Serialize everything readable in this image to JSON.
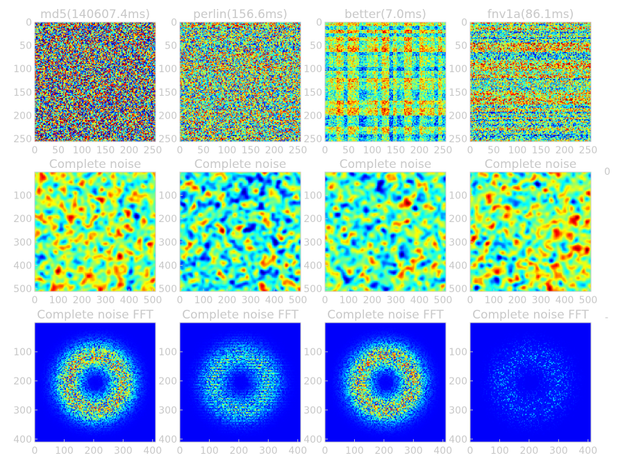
{
  "figure": {
    "text_color": "#c8c8c8",
    "colormap": "jet",
    "stray_marks": [
      "0",
      "-"
    ]
  },
  "chart_data": [
    {
      "type": "heatmap",
      "row": 1,
      "col": 1,
      "title": "md5(140607.4ms)",
      "texture": "white-noise",
      "xticks": [
        "0",
        "50",
        "100",
        "150",
        "200",
        "250"
      ],
      "yticks": [
        "0",
        "50",
        "100",
        "150",
        "200",
        "250"
      ],
      "axis_max": 256
    },
    {
      "type": "heatmap",
      "row": 1,
      "col": 2,
      "title": "perlin(156.6ms)",
      "texture": "white-noise-banded",
      "xticks": [
        "0",
        "50",
        "100",
        "150",
        "200",
        "250"
      ],
      "yticks": [
        "0",
        "50",
        "100",
        "150",
        "200",
        "250"
      ],
      "axis_max": 256
    },
    {
      "type": "heatmap",
      "row": 1,
      "col": 3,
      "title": "better(7.0ms)",
      "texture": "grid-noise",
      "xticks": [
        "0",
        "50",
        "100",
        "150",
        "200",
        "250"
      ],
      "yticks": [
        "0",
        "50",
        "100",
        "150",
        "200",
        "250"
      ],
      "axis_max": 256
    },
    {
      "type": "heatmap",
      "row": 1,
      "col": 4,
      "title": "fnv1a(86.1ms)",
      "texture": "row-banded-noise",
      "xticks": [
        "0",
        "50",
        "100",
        "150",
        "200",
        "250"
      ],
      "yticks": [
        "0",
        "50",
        "100",
        "150",
        "200",
        "250"
      ],
      "axis_max": 256
    },
    {
      "type": "heatmap",
      "row": 2,
      "col": 1,
      "title": "Complete noise",
      "texture": "smooth-blobs",
      "xticks": [
        "0",
        "100",
        "200",
        "300",
        "400",
        "500"
      ],
      "yticks": [
        "100",
        "200",
        "300",
        "400",
        "500"
      ],
      "axis_max": 512
    },
    {
      "type": "heatmap",
      "row": 2,
      "col": 2,
      "title": "Complete noise",
      "texture": "smooth-blobs",
      "xticks": [
        "0",
        "100",
        "200",
        "300",
        "400",
        "500"
      ],
      "yticks": [
        "100",
        "200",
        "300",
        "400",
        "500"
      ],
      "axis_max": 512
    },
    {
      "type": "heatmap",
      "row": 2,
      "col": 3,
      "title": "Complete noise",
      "texture": "smooth-blobs",
      "xticks": [
        "0",
        "100",
        "200",
        "300",
        "400",
        "500"
      ],
      "yticks": [
        "100",
        "200",
        "300",
        "400",
        "500"
      ],
      "axis_max": 512
    },
    {
      "type": "heatmap",
      "row": 2,
      "col": 4,
      "title": "Complete noise",
      "texture": "smooth-blobs",
      "xticks": [
        "0",
        "100",
        "200",
        "300",
        "400",
        "500"
      ],
      "yticks": [
        "100",
        "200",
        "300",
        "400",
        "500"
      ],
      "axis_max": 512
    },
    {
      "type": "heatmap",
      "row": 3,
      "col": 1,
      "title": "Complete noise FFT",
      "texture": "fft-ring",
      "intensity": 1.0,
      "xticks": [
        "0",
        "100",
        "200",
        "300",
        "400"
      ],
      "yticks": [
        "100",
        "200",
        "300",
        "400"
      ],
      "axis_max": 410
    },
    {
      "type": "heatmap",
      "row": 3,
      "col": 2,
      "title": "Complete noise FFT",
      "texture": "fft-ring-banded",
      "intensity": 0.55,
      "xticks": [
        "0",
        "100",
        "200",
        "300",
        "400"
      ],
      "yticks": [
        "100",
        "200",
        "300",
        "400"
      ],
      "axis_max": 410
    },
    {
      "type": "heatmap",
      "row": 3,
      "col": 3,
      "title": "Complete noise FFT",
      "texture": "fft-ring",
      "intensity": 1.0,
      "xticks": [
        "0",
        "100",
        "200",
        "300",
        "400"
      ],
      "yticks": [
        "100",
        "200",
        "300",
        "400"
      ],
      "axis_max": 410
    },
    {
      "type": "heatmap",
      "row": 3,
      "col": 4,
      "title": "Complete noise FFT",
      "texture": "fft-ring-sparse",
      "intensity": 0.3,
      "xticks": [
        "0",
        "100",
        "200",
        "300",
        "400"
      ],
      "yticks": [
        "100",
        "200",
        "300",
        "400"
      ],
      "axis_max": 410
    }
  ]
}
